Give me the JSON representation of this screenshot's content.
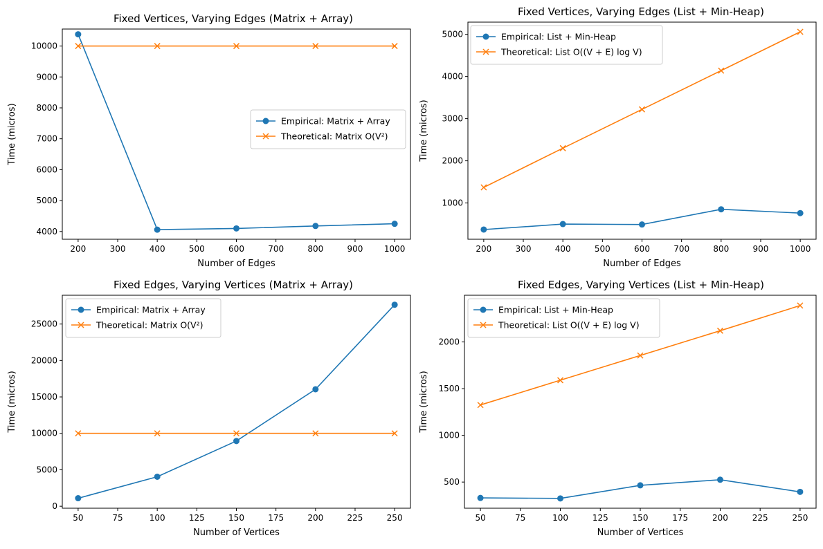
{
  "colors": {
    "empirical": "#1f77b4",
    "theoretical": "#ff7f0e"
  },
  "chart_data": [
    {
      "type": "line",
      "title": "Fixed Vertices, Varying Edges (Matrix + Array)",
      "xlabel": "Number of Edges",
      "ylabel": "Time (micros)",
      "x": [
        200,
        400,
        600,
        800,
        1000
      ],
      "xticks": [
        200,
        300,
        400,
        500,
        600,
        700,
        800,
        900,
        1000
      ],
      "yticks": [
        4000,
        5000,
        6000,
        7000,
        8000,
        9000,
        10000
      ],
      "xlim": [
        160,
        1040
      ],
      "ylim": [
        3750,
        10550
      ],
      "legend": "center-right",
      "series": [
        {
          "name": "Empirical: Matrix + Array",
          "marker": "o",
          "values": [
            10380,
            4060,
            4100,
            4180,
            4250
          ]
        },
        {
          "name": "Theoretical: Matrix O(V²)",
          "marker": "x",
          "values": [
            10000,
            10000,
            10000,
            10000,
            10000
          ]
        }
      ]
    },
    {
      "type": "line",
      "title": "Fixed Vertices, Varying Edges (List + Min-Heap)",
      "xlabel": "Number of Edges",
      "ylabel": "Time (micros)",
      "x": [
        200,
        400,
        600,
        800,
        1000
      ],
      "xticks": [
        200,
        300,
        400,
        500,
        600,
        700,
        800,
        900,
        1000
      ],
      "yticks": [
        1000,
        2000,
        3000,
        4000,
        5000
      ],
      "xlim": [
        160,
        1040
      ],
      "ylim": [
        140,
        5290
      ],
      "legend": "top-left",
      "series": [
        {
          "name": "Empirical: List + Min-Heap",
          "marker": "o",
          "values": [
            370,
            500,
            490,
            850,
            760
          ]
        },
        {
          "name": "Theoretical: List O((V + E) log V)",
          "marker": "x",
          "values": [
            1370,
            2300,
            3220,
            4140,
            5060
          ]
        }
      ]
    },
    {
      "type": "line",
      "title": "Fixed Edges, Varying Vertices (Matrix + Array)",
      "xlabel": "Number of Vertices",
      "ylabel": "Time (micros)",
      "x": [
        50,
        100,
        150,
        200,
        250
      ],
      "xticks": [
        50,
        75,
        100,
        125,
        150,
        175,
        200,
        225,
        250
      ],
      "yticks": [
        0,
        5000,
        10000,
        15000,
        20000,
        25000
      ],
      "xlim": [
        40,
        260
      ],
      "ylim": [
        -270,
        28950
      ],
      "legend": "top-left",
      "series": [
        {
          "name": "Empirical: Matrix + Array",
          "marker": "o",
          "values": [
            1100,
            4050,
            8950,
            16050,
            27650
          ]
        },
        {
          "name": "Theoretical: Matrix O(V²)",
          "marker": "x",
          "values": [
            10000,
            10000,
            10000,
            10000,
            10000
          ]
        }
      ]
    },
    {
      "type": "line",
      "title": "Fixed Edges, Varying Vertices (List + Min-Heap)",
      "xlabel": "Number of Vertices",
      "ylabel": "Time (micros)",
      "x": [
        50,
        100,
        150,
        200,
        250
      ],
      "xticks": [
        50,
        75,
        100,
        125,
        150,
        175,
        200,
        225,
        250
      ],
      "yticks": [
        500,
        1000,
        1500,
        2000
      ],
      "xlim": [
        40,
        260
      ],
      "ylim": [
        220,
        2500
      ],
      "legend": "top-left",
      "series": [
        {
          "name": "Empirical: List + Min-Heap",
          "marker": "o",
          "values": [
            330,
            325,
            465,
            525,
            395
          ]
        },
        {
          "name": "Theoretical: List O((V + E) log V)",
          "marker": "x",
          "values": [
            1325,
            1590,
            1855,
            2120,
            2390
          ]
        }
      ]
    }
  ]
}
